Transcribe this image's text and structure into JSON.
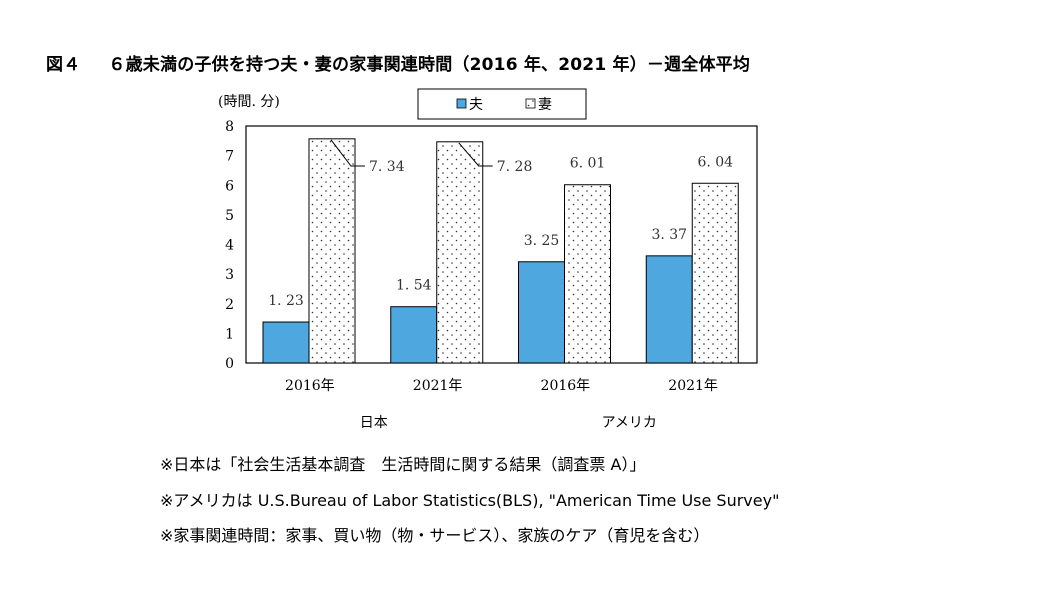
{
  "figure": {
    "label": "図４",
    "title": "６歳未満の子供を持つ夫・妻の家事関連時間（2016 年、2021 年）－週全体平均"
  },
  "chart_data": {
    "type": "bar",
    "ylabel": "(時間. 分)",
    "ylim": [
      0,
      8
    ],
    "yticks": [
      0,
      1,
      2,
      3,
      4,
      5,
      6,
      7,
      8
    ],
    "grid": false,
    "legend_position": "top",
    "categories": [
      "2016年",
      "2021年",
      "2016年",
      "2021年"
    ],
    "groups": [
      {
        "label": "日本",
        "categories": [
          "2016年",
          "2021年"
        ]
      },
      {
        "label": "アメリカ",
        "categories": [
          "2016年",
          "2021年"
        ]
      }
    ],
    "series": [
      {
        "name": "夫",
        "values": [
          1.23,
          1.54,
          3.25,
          3.37
        ],
        "labels": [
          "1. 23",
          "1. 54",
          "3. 25",
          "3. 37"
        ],
        "plot_values": [
          1.383,
          1.9,
          3.417,
          3.617
        ],
        "color": "#4ea7de",
        "pattern": "solid"
      },
      {
        "name": "妻",
        "values": [
          7.34,
          7.28,
          6.01,
          6.04
        ],
        "labels": [
          "7. 34",
          "7. 28",
          "6. 01",
          "6. 04"
        ],
        "plot_values": [
          7.567,
          7.467,
          6.017,
          6.067
        ],
        "color": "#ffffff",
        "pattern": "dotted"
      }
    ]
  },
  "notes": [
    "※日本は「社会生活基本調査　生活時間に関する結果（調査票 A）」",
    "※アメリカは U.S.Bureau of Labor Statistics(BLS), \"American Time Use Survey\"",
    "※家事関連時間：家事、買い物（物・サービス）、家族のケア（育児を含む）"
  ]
}
